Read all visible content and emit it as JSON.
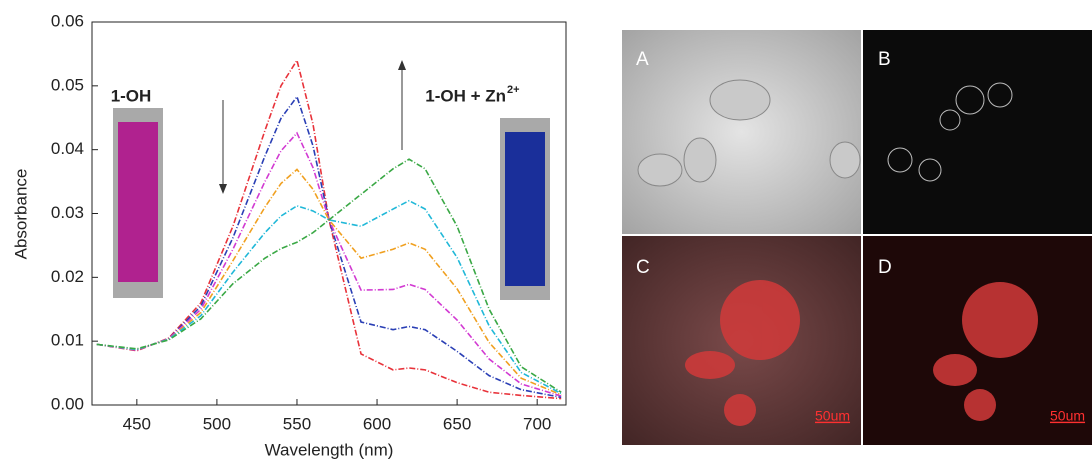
{
  "chart_data": {
    "type": "line",
    "x_label": "Wavelength (nm)",
    "y_label": "Absorbance",
    "annotations": [
      {
        "text": "1-OH"
      },
      {
        "text": "1-OH + Zn",
        "sup": "2+"
      }
    ],
    "xlim": [
      422,
      718
    ],
    "xticks": [
      450,
      500,
      550,
      600,
      650,
      700
    ],
    "ylim": [
      0,
      0.06
    ],
    "yticks": [
      {
        "value": 0,
        "label": "0.00"
      },
      0.01,
      0.02,
      0.03,
      0.04,
      0.05,
      0.06
    ],
    "x": [
      425,
      450,
      470,
      490,
      510,
      530,
      540,
      550,
      560,
      570,
      590,
      610,
      620,
      630,
      650,
      670,
      690,
      715
    ],
    "series": [
      {
        "color": "#e8323a",
        "values": [
          0.0095,
          0.0085,
          0.0105,
          0.016,
          0.028,
          0.043,
          0.05,
          0.054,
          0.044,
          0.029,
          0.008,
          0.0055,
          0.0058,
          0.0055,
          0.0035,
          0.002,
          0.0015,
          0.001
        ]
      },
      {
        "color": "#2a3fb5",
        "values": [
          0.0095,
          0.0086,
          0.0104,
          0.0155,
          0.0262,
          0.039,
          0.0449,
          0.0483,
          0.0406,
          0.029,
          0.013,
          0.0118,
          0.0123,
          0.0118,
          0.0084,
          0.0046,
          0.0024,
          0.0012
        ]
      },
      {
        "color": "#d23ad2",
        "values": [
          0.0095,
          0.0086,
          0.0104,
          0.015,
          0.0244,
          0.035,
          0.0398,
          0.0426,
          0.0372,
          0.029,
          0.018,
          0.0181,
          0.0189,
          0.0181,
          0.0133,
          0.0072,
          0.0033,
          0.0014
        ]
      },
      {
        "color": "#f0a020",
        "values": [
          0.0095,
          0.0087,
          0.0103,
          0.0145,
          0.0226,
          0.031,
          0.0347,
          0.0369,
          0.0338,
          0.029,
          0.023,
          0.0244,
          0.0254,
          0.0244,
          0.0182,
          0.0098,
          0.0042,
          0.0016
        ]
      },
      {
        "color": "#20b8d8",
        "values": [
          0.0095,
          0.0087,
          0.0103,
          0.014,
          0.0208,
          0.027,
          0.0296,
          0.0312,
          0.0304,
          0.029,
          0.028,
          0.0307,
          0.032,
          0.0307,
          0.0231,
          0.0124,
          0.0051,
          0.0018
        ]
      },
      {
        "color": "#3aa845",
        "values": [
          0.0095,
          0.0088,
          0.0102,
          0.0135,
          0.019,
          0.023,
          0.0245,
          0.0255,
          0.027,
          0.029,
          0.033,
          0.037,
          0.0385,
          0.037,
          0.028,
          0.015,
          0.006,
          0.002
        ]
      }
    ]
  },
  "images": {
    "labels": [
      "A",
      "B",
      "C",
      "D"
    ],
    "scale_bars": [
      "50um",
      "50um"
    ]
  }
}
